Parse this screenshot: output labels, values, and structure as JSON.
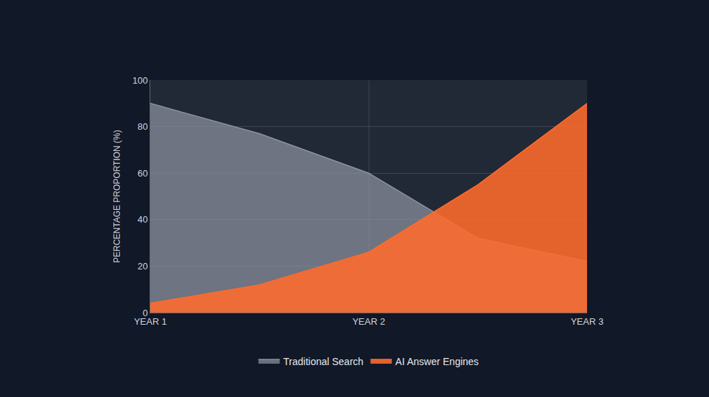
{
  "chart_data": {
    "type": "area",
    "y_label": "PERCENTAGE PROPORTION (%)",
    "categories": [
      "YEAR 1",
      null,
      "YEAR 2",
      null,
      "YEAR 3"
    ],
    "series": [
      {
        "name": "Traditional Search",
        "color": "#8c929e",
        "values": [
          90,
          77,
          60,
          32,
          22
        ]
      },
      {
        "name": "AI Answer Engines",
        "color": "#ff6b2c",
        "values": [
          4,
          12,
          26,
          55,
          90
        ]
      }
    ],
    "ylim": [
      0,
      100
    ],
    "yticks": [
      0,
      20,
      40,
      60,
      80,
      100
    ],
    "grid": true,
    "legend": "bottom",
    "stacked": false
  }
}
